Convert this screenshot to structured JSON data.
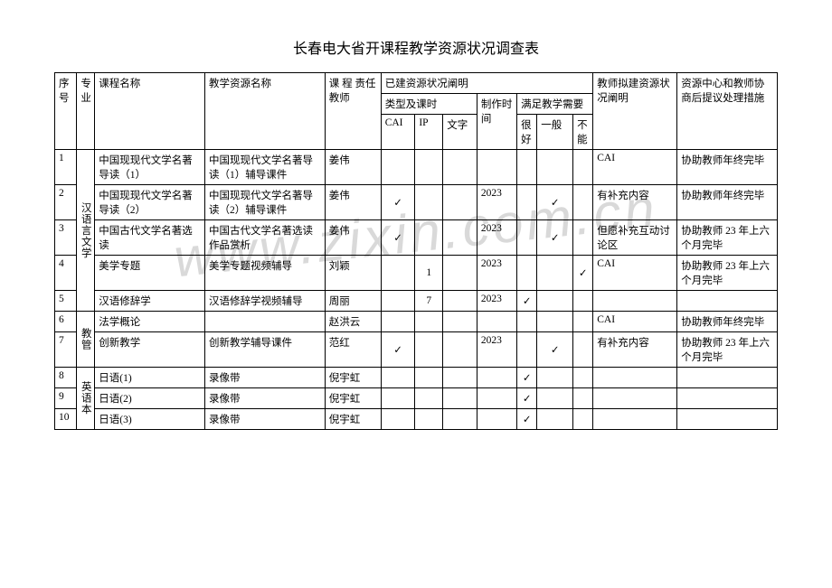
{
  "watermark": "www.zixin.com.cn",
  "title": "长春电大省开课程教学资源状况调查表",
  "headers": {
    "seq": "序号",
    "major": "专业",
    "course": "课程名称",
    "resource": "教学资源名称",
    "teacher": "课 程 责任教师",
    "built_status": "已建资源状况阐明",
    "type_hours": "类型及课时",
    "cai": "CAI",
    "ip": "IP",
    "text": "文字",
    "make": "制作时间",
    "need": "满足教学需要",
    "good": "很好",
    "avg": "一般",
    "bad": "不能",
    "plan": "教师拟建资源状况阐明",
    "action": "资源中心和教师协商后提议处理措施"
  },
  "majors": {
    "m1": "汉语言文学",
    "m2": "教管",
    "m3": "英语本"
  },
  "rows": [
    {
      "seq": "1",
      "course": "中国现现代文学名著导读（1）",
      "resource": "中国现现代文学名著导读（1）辅导课件",
      "teacher": "姜伟",
      "cai": "",
      "ip": "",
      "text": "",
      "time": "",
      "good": "",
      "avg": "",
      "bad": "",
      "plan": "CAI",
      "action": "协助教师年终完毕"
    },
    {
      "seq": "2",
      "course": "中国现现代文学名著导读（2）",
      "resource": "中国现现代文学名著导读（2）辅导课件",
      "teacher": "姜伟",
      "cai": "✓",
      "ip": "",
      "text": "",
      "time": "2023",
      "good": "",
      "avg": "✓",
      "bad": "",
      "plan": "有补充内容",
      "action": "协助教师年终完毕"
    },
    {
      "seq": "3",
      "course": "中国古代文学名著选读",
      "resource": "中国古代文学名著选读作品赏析",
      "teacher": "姜伟",
      "cai": "✓",
      "ip": "",
      "text": "",
      "time": "2023",
      "good": "",
      "avg": "✓",
      "bad": "",
      "plan": "但愿补充互动讨论区",
      "action": "协助教师 23 年上六个月完毕"
    },
    {
      "seq": "4",
      "course": "美学专题",
      "resource": "美学专题视频辅导",
      "teacher": "刘颖",
      "cai": "",
      "ip": "1",
      "text": "",
      "time": "2023",
      "good": "",
      "avg": "",
      "bad": "✓",
      "plan": "CAI",
      "action": "协助教师 23 年上六个月完毕"
    },
    {
      "seq": "5",
      "course": "汉语修辞学",
      "resource": "汉语修辞学视频辅导",
      "teacher": "周丽",
      "cai": "",
      "ip": "7",
      "text": "",
      "time": "2023",
      "good": "✓",
      "avg": "",
      "bad": "",
      "plan": "",
      "action": ""
    },
    {
      "seq": "6",
      "course": "法学概论",
      "resource": "",
      "teacher": "赵洪云",
      "cai": "",
      "ip": "",
      "text": "",
      "time": "",
      "good": "",
      "avg": "",
      "bad": "",
      "plan": "CAI",
      "action": "协助教师年终完毕"
    },
    {
      "seq": "7",
      "course": "创新教学",
      "resource": "创新教学辅导课件",
      "teacher": "范红",
      "cai": "✓",
      "ip": "",
      "text": "",
      "time": "2023",
      "good": "",
      "avg": "✓",
      "bad": "",
      "plan": "有补充内容",
      "action": "协助教师 23 年上六个月完毕"
    },
    {
      "seq": "8",
      "course": "日语(1)",
      "resource": "录像带",
      "teacher": "倪宇虹",
      "cai": "",
      "ip": "",
      "text": "",
      "time": "",
      "good": "✓",
      "avg": "",
      "bad": "",
      "plan": "",
      "action": ""
    },
    {
      "seq": "9",
      "course": "日语(2)",
      "resource": "录像带",
      "teacher": "倪宇虹",
      "cai": "",
      "ip": "",
      "text": "",
      "time": "",
      "good": "✓",
      "avg": "",
      "bad": "",
      "plan": "",
      "action": ""
    },
    {
      "seq": "10",
      "course": "日语(3)",
      "resource": "录像带",
      "teacher": "倪宇虹",
      "cai": "",
      "ip": "",
      "text": "",
      "time": "",
      "good": "✓",
      "avg": "",
      "bad": "",
      "plan": "",
      "action": ""
    }
  ]
}
